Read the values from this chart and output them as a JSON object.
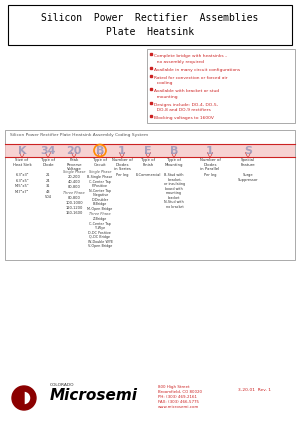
{
  "title_line1": "Silicon  Power  Rectifier  Assemblies",
  "title_line2": "Plate  Heatsink",
  "bg_color": "#ffffff",
  "features": [
    "Complete bridge with heatsinks –\n  no assembly required",
    "Available in many circuit configurations",
    "Rated for convection or forced air\n  cooling",
    "Available with bracket or stud\n  mounting",
    "Designs include: DO-4, DO-5,\n  DO-8 and DO-9 rectifiers",
    "Blocking voltages to 1600V"
  ],
  "coding_title": "Silicon Power Rectifier Plate Heatsink Assembly Coding System",
  "code_letters": [
    "K",
    "34",
    "20",
    "B",
    "1",
    "E",
    "B",
    "1",
    "S"
  ],
  "code_x": [
    22,
    48,
    74,
    100,
    122,
    148,
    174,
    210,
    248
  ],
  "col_labels": [
    "Size of\nHeat Sink",
    "Type of\nDiode",
    "Peak\nReverse\nVoltage",
    "Type of\nCircuit",
    "Number of\nDiodes\nin Series",
    "Type of\nFinish",
    "Type of\nMounting",
    "Number of\nDiodes\nin Parallel",
    "Special\nFeature"
  ],
  "heat_sink_vals": [
    "6-3\"x3\"",
    "6-3\"x5\"",
    "M-5\"x5\"",
    "M-7\"x7\""
  ],
  "diode_vals": [
    "21",
    "24",
    "31",
    "43",
    "504"
  ],
  "voltage_sp": [
    "20-200",
    "40-400",
    "80-800"
  ],
  "voltage_3p": [
    "80-800",
    "100-1000",
    "120-1200",
    "160-1600"
  ],
  "circuit_sp": [
    "B-Single Phase",
    "C-Center Tap",
    "P-Positive",
    "N-Center Tap",
    " Negative",
    "D-Doubler",
    "B-Bridge",
    "M-Open Bridge"
  ],
  "circuit_3p": [
    "Z-Bridge",
    "C-Center Tap",
    "Y-Wye",
    "D-DC Positive",
    "Q-DC Bridge",
    "W-Double WYE",
    "V-Open Bridge"
  ],
  "mount_lines": [
    "B-Stud with",
    " bracket,",
    "or insulating",
    "board with",
    "mounting",
    "bracket",
    "N-Stud with",
    " no bracket"
  ],
  "footer_addr": "800 High Street\nBroomfield, CO 80020\nPH: (303) 469-2161\nFAX: (303) 466-5775\nwww.microsemi.com",
  "footer_rev": "3-20-01  Rev. 1",
  "red": "#cc2222",
  "dark_red": "#8b0000",
  "orange": "#ff8c00",
  "light_red_bar": "#f5c0c0",
  "gray_border": "#888888",
  "text_dark": "#333333",
  "text_med": "#555555",
  "wm_color": "#c8d0e0"
}
